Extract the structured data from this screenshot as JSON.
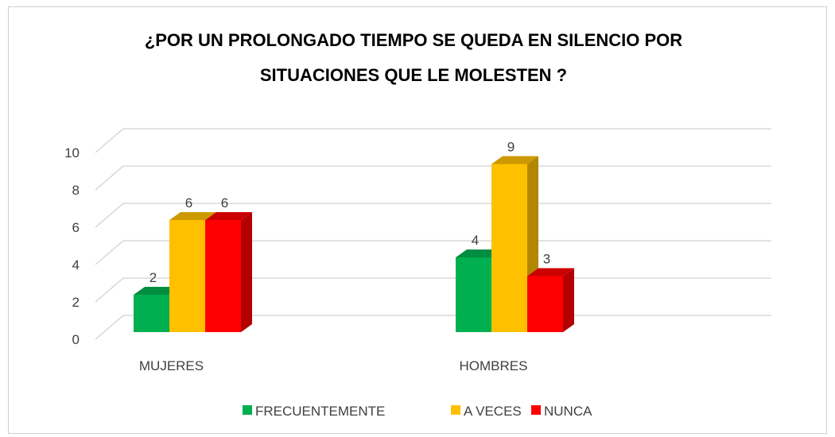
{
  "chart_data": {
    "type": "bar3d",
    "title": [
      "¿POR UN PROLONGADO TIEMPO SE QUEDA EN SILENCIO POR",
      "SITUACIONES QUE LE MOLESTEN ?"
    ],
    "categories": [
      "MUJERES",
      "HOMBRES"
    ],
    "series": [
      {
        "name": "FRECUENTEMENTE",
        "color": "#00b050",
        "values": [
          2,
          4
        ]
      },
      {
        "name": "A VECES",
        "color": "#ffc000",
        "values": [
          6,
          9
        ]
      },
      {
        "name": "NUNCA",
        "color": "#ff0000",
        "values": [
          6,
          3
        ]
      }
    ],
    "ylim": [
      0,
      10
    ],
    "yticks": [
      0,
      2,
      4,
      6,
      8,
      10
    ],
    "grid": true,
    "legend": "bottom"
  }
}
